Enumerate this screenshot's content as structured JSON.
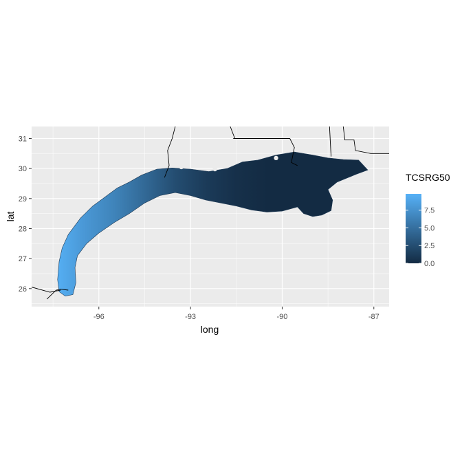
{
  "chart_data": {
    "type": "heatmap",
    "title": "",
    "xlabel": "long",
    "ylabel": "lat",
    "xlim": [
      -98.2,
      -86.5
    ],
    "ylim": [
      25.4,
      31.4
    ],
    "x_ticks": [
      -96,
      -93,
      -90,
      -87
    ],
    "x_tick_labels": [
      "-96",
      "-93",
      "-90",
      "-87"
    ],
    "y_ticks": [
      26,
      27,
      28,
      29,
      30,
      31
    ],
    "y_tick_labels": [
      "26",
      "27",
      "28",
      "29",
      "30",
      "31"
    ],
    "grid": true,
    "panel_background": "#ebebeb",
    "legend": {
      "title": "TCSRG50",
      "position": "right",
      "range": [
        0,
        9.8
      ],
      "breaks": [
        0.0,
        2.5,
        5.0,
        7.5
      ],
      "break_labels": [
        "0.0",
        "2.5",
        "5.0",
        "7.5"
      ],
      "color_low": "#132b43",
      "color_high": "#56b1f7"
    },
    "region": {
      "outer_edge": [
        [
          -97.1,
          25.75
        ],
        [
          -96.85,
          25.8
        ],
        [
          -96.75,
          26.2
        ],
        [
          -96.78,
          26.7
        ],
        [
          -96.7,
          27.1
        ],
        [
          -96.4,
          27.5
        ],
        [
          -96.0,
          27.85
        ],
        [
          -95.5,
          28.2
        ],
        [
          -95.0,
          28.5
        ],
        [
          -94.5,
          28.85
        ],
        [
          -94.0,
          29.1
        ],
        [
          -93.5,
          29.2
        ],
        [
          -93.0,
          29.1
        ],
        [
          -92.5,
          28.95
        ],
        [
          -92.0,
          28.85
        ],
        [
          -91.5,
          28.75
        ],
        [
          -91.0,
          28.62
        ],
        [
          -90.5,
          28.55
        ],
        [
          -90.0,
          28.58
        ],
        [
          -89.5,
          28.72
        ],
        [
          -89.3,
          28.5
        ],
        [
          -89.0,
          28.4
        ],
        [
          -88.7,
          28.45
        ],
        [
          -88.4,
          28.6
        ],
        [
          -88.35,
          28.95
        ],
        [
          -88.5,
          29.3
        ],
        [
          -88.2,
          29.55
        ],
        [
          -87.6,
          29.8
        ],
        [
          -87.2,
          29.95
        ],
        [
          -87.5,
          30.28
        ],
        [
          -88.0,
          30.3
        ],
        [
          -88.5,
          30.35
        ],
        [
          -89.0,
          30.45
        ],
        [
          -89.6,
          30.55
        ],
        [
          -90.2,
          30.45
        ],
        [
          -90.8,
          30.28
        ],
        [
          -91.3,
          30.22
        ],
        [
          -91.8,
          30.0
        ],
        [
          -92.4,
          29.9
        ],
        [
          -93.0,
          29.98
        ],
        [
          -93.6,
          30.02
        ],
        [
          -94.1,
          29.98
        ],
        [
          -94.6,
          29.78
        ],
        [
          -95.0,
          29.55
        ],
        [
          -95.4,
          29.35
        ],
        [
          -95.8,
          29.05
        ],
        [
          -96.2,
          28.75
        ],
        [
          -96.6,
          28.35
        ],
        [
          -97.0,
          27.8
        ],
        [
          -97.2,
          27.35
        ],
        [
          -97.3,
          26.9
        ],
        [
          -97.35,
          26.3
        ],
        [
          -97.3,
          25.9
        ]
      ],
      "inland_points": [
        [
          -94.9,
          29.78
        ],
        [
          -94.8,
          29.9
        ],
        [
          -95.1,
          29.72
        ],
        [
          -93.3,
          30.05
        ],
        [
          -92.2,
          29.98
        ],
        [
          -91.6,
          30.18
        ],
        [
          -90.2,
          30.35
        ],
        [
          -89.8,
          30.6
        ],
        [
          -88.0,
          30.42
        ]
      ],
      "bands": [
        {
          "lon": -97.3,
          "value": 9.5
        },
        {
          "lon": -96.5,
          "value": 8.0
        },
        {
          "lon": -95.5,
          "value": 6.5
        },
        {
          "lon": -94.5,
          "value": 4.5
        },
        {
          "lon": -93.5,
          "value": 2.5
        },
        {
          "lon": -92.5,
          "value": 1.2
        },
        {
          "lon": -91.5,
          "value": 0.4
        },
        {
          "lon": -90.5,
          "value": 0.0
        },
        {
          "lon": -87.0,
          "value": 0.0
        }
      ]
    },
    "borders": [
      [
        [
          -93.5,
          31.4
        ],
        [
          -93.6,
          31.0
        ],
        [
          -93.75,
          30.6
        ],
        [
          -93.7,
          30.1
        ],
        [
          -93.85,
          29.7
        ]
      ],
      [
        [
          -91.7,
          31.4
        ],
        [
          -91.55,
          31.0
        ]
      ],
      [
        [
          -91.6,
          31.0
        ],
        [
          -89.75,
          31.0
        ],
        [
          -89.6,
          30.7
        ],
        [
          -89.7,
          30.2
        ],
        [
          -89.5,
          30.1
        ]
      ],
      [
        [
          -88.45,
          31.4
        ],
        [
          -88.4,
          30.4
        ]
      ],
      [
        [
          -88.0,
          31.4
        ],
        [
          -87.95,
          30.95
        ],
        [
          -87.65,
          30.95
        ],
        [
          -87.6,
          30.6
        ],
        [
          -87.1,
          30.5
        ],
        [
          -86.5,
          30.5
        ]
      ],
      [
        [
          -97.7,
          25.65
        ],
        [
          -97.4,
          25.95
        ],
        [
          -97.25,
          25.98
        ],
        [
          -97.0,
          25.95
        ]
      ],
      [
        [
          -98.2,
          26.05
        ],
        [
          -97.6,
          25.88
        ],
        [
          -97.25,
          25.95
        ]
      ]
    ]
  }
}
